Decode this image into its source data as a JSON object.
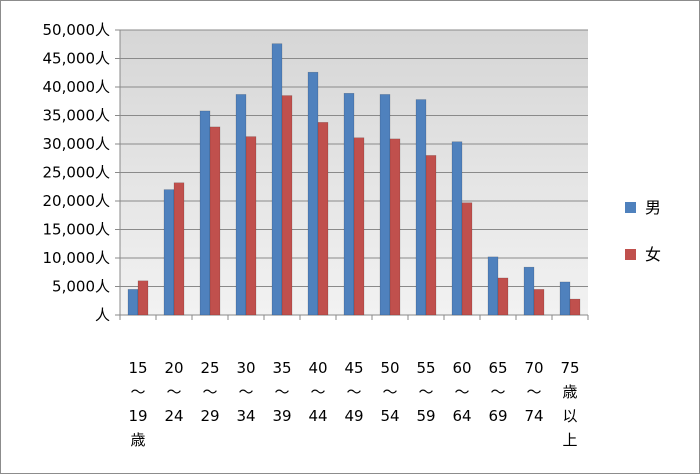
{
  "chart_data": {
    "type": "bar",
    "title": "",
    "xlabel": "",
    "ylabel": "",
    "ylim": [
      0,
      50000
    ],
    "y_tick_step": 5000,
    "y_tick_labels": [
      "人",
      "5,000人",
      "10,000人",
      "15,000人",
      "20,000人",
      "25,000人",
      "30,000人",
      "35,000人",
      "40,000人",
      "45,000人",
      "50,000人"
    ],
    "categories": [
      [
        "15",
        "〜",
        "19",
        "歳"
      ],
      [
        "20",
        "〜",
        "24"
      ],
      [
        "25",
        "〜",
        "29"
      ],
      [
        "30",
        "〜",
        "34"
      ],
      [
        "35",
        "〜",
        "39"
      ],
      [
        "40",
        "〜",
        "44"
      ],
      [
        "45",
        "〜",
        "49"
      ],
      [
        "50",
        "〜",
        "54"
      ],
      [
        "55",
        "〜",
        "59"
      ],
      [
        "60",
        "〜",
        "64"
      ],
      [
        "65",
        "〜",
        "69"
      ],
      [
        "70",
        "〜",
        "74"
      ],
      [
        "75",
        "歳",
        "以",
        "上"
      ]
    ],
    "series": [
      {
        "name": "男",
        "color": "#4F81BD",
        "values": [
          4500,
          22000,
          35800,
          38700,
          47600,
          42600,
          38900,
          38700,
          37800,
          30400,
          10200,
          8400,
          5800
        ]
      },
      {
        "name": "女",
        "color": "#C0504D",
        "values": [
          6000,
          23200,
          33000,
          31300,
          38500,
          33800,
          31100,
          30900,
          28000,
          19700,
          6500,
          4500,
          2800
        ]
      }
    ],
    "grid": true,
    "legend": "right"
  }
}
